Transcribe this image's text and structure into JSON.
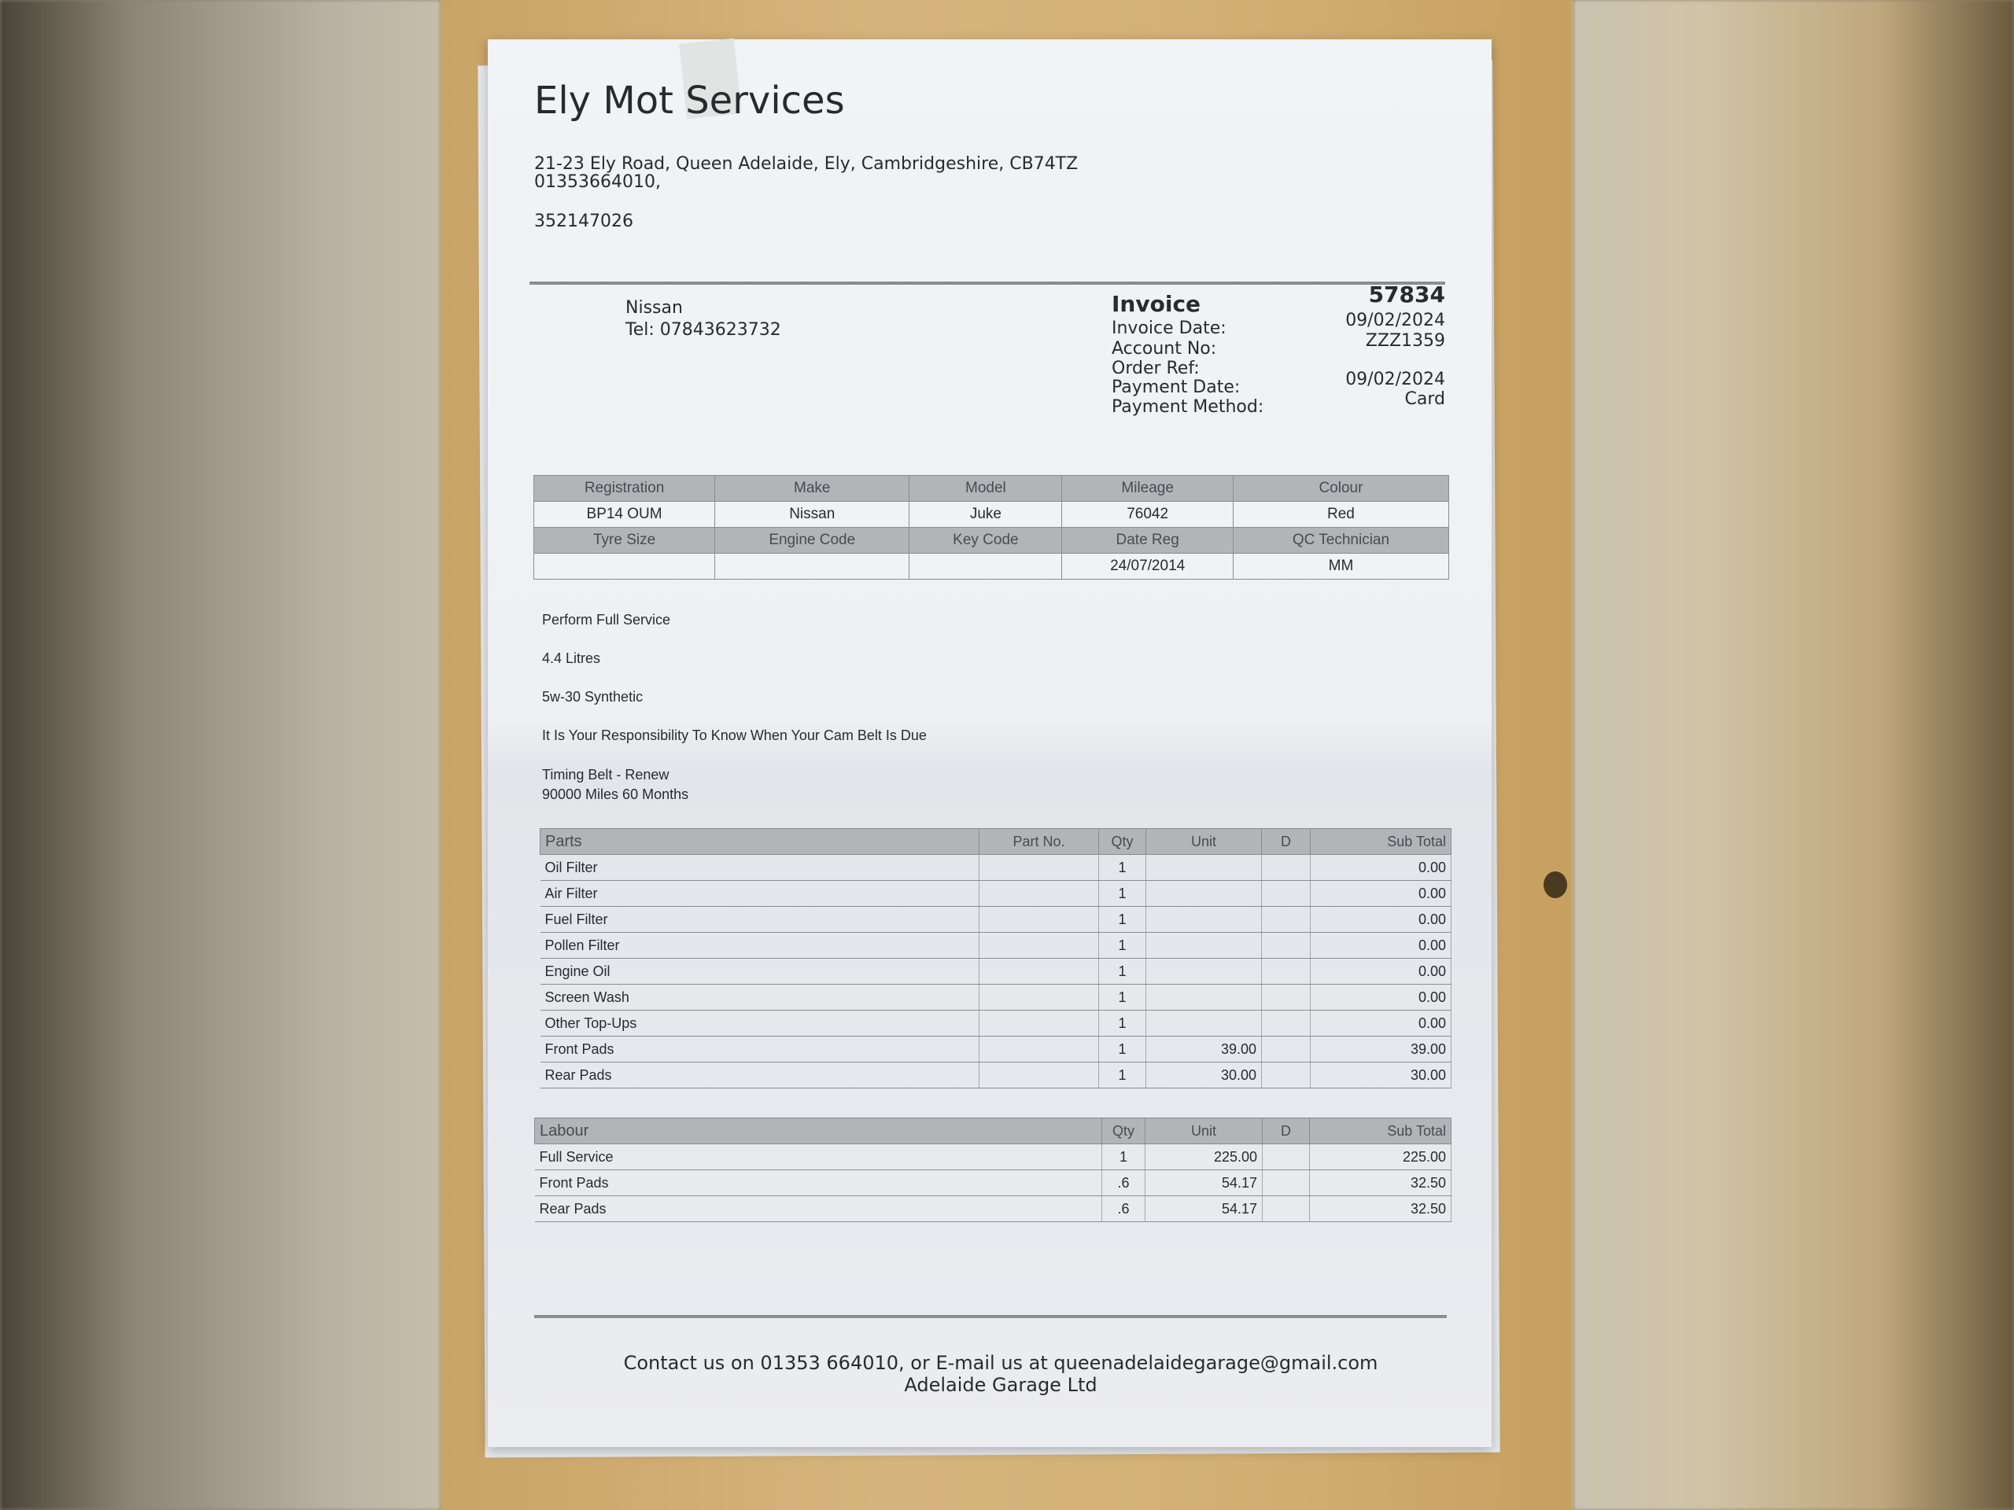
{
  "company": {
    "name": "Ely Mot Services",
    "address": "21-23 Ely Road, Queen Adelaide, Ely, Cambridgeshire, CB74TZ",
    "phone": "01353664010,",
    "number": "352147026"
  },
  "customer": {
    "name": "Nissan",
    "tel": "Tel: 07843623732"
  },
  "invoice": {
    "title": "Invoice",
    "number": "57834",
    "fields": [
      {
        "label": "Invoice Date:",
        "value": "09/02/2024"
      },
      {
        "label": "Account No:",
        "value": "ZZZ1359"
      },
      {
        "label": "Order Ref:",
        "value": ""
      },
      {
        "label": "Payment Date:",
        "value": "09/02/2024"
      },
      {
        "label": "Payment Method:",
        "value": "Card"
      }
    ]
  },
  "vehicle": {
    "headers1": [
      "Registration",
      "Make",
      "Model",
      "Mileage",
      "Colour"
    ],
    "values1": [
      "BP14 OUM",
      "Nissan",
      "Juke",
      "76042",
      "Red"
    ],
    "headers2": [
      "Tyre Size",
      "Engine Code",
      "Key Code",
      "Date Reg",
      "QC Technician"
    ],
    "values2": [
      "",
      "",
      "",
      "24/07/2014",
      "MM"
    ]
  },
  "notes": [
    "Perform Full Service",
    "4.4 Litres",
    "5w-30 Synthetic",
    "It Is Your Responsibility To Know When Your Cam Belt Is Due",
    "Timing Belt - Renew",
    "90000 Miles 60 Months"
  ],
  "parts": {
    "headers": [
      "Parts",
      "Part No.",
      "Qty",
      "Unit",
      "D",
      "Sub Total"
    ],
    "rows": [
      [
        "Oil Filter",
        "",
        "1",
        "",
        "",
        "0.00"
      ],
      [
        "Air Filter",
        "",
        "1",
        "",
        "",
        "0.00"
      ],
      [
        "Fuel Filter",
        "",
        "1",
        "",
        "",
        "0.00"
      ],
      [
        "Pollen Filter",
        "",
        "1",
        "",
        "",
        "0.00"
      ],
      [
        "Engine Oil",
        "",
        "1",
        "",
        "",
        "0.00"
      ],
      [
        "Screen Wash",
        "",
        "1",
        "",
        "",
        "0.00"
      ],
      [
        "Other Top-Ups",
        "",
        "1",
        "",
        "",
        "0.00"
      ],
      [
        "Front Pads",
        "",
        "1",
        "39.00",
        "",
        "39.00"
      ],
      [
        "Rear Pads",
        "",
        "1",
        "30.00",
        "",
        "30.00"
      ]
    ]
  },
  "labour": {
    "headers": [
      "Labour",
      "Qty",
      "Unit",
      "D",
      "Sub Total"
    ],
    "rows": [
      [
        "Full Service",
        "1",
        "225.00",
        "",
        "225.00"
      ],
      [
        "Front Pads",
        ".6",
        "54.17",
        "",
        "32.50"
      ],
      [
        "Rear Pads",
        ".6",
        "54.17",
        "",
        "32.50"
      ]
    ]
  },
  "footer": {
    "contact": "Contact us on 01353 664010, or E-mail us at queenadelaidegarage@gmail.com",
    "company": "Adelaide Garage Ltd"
  }
}
